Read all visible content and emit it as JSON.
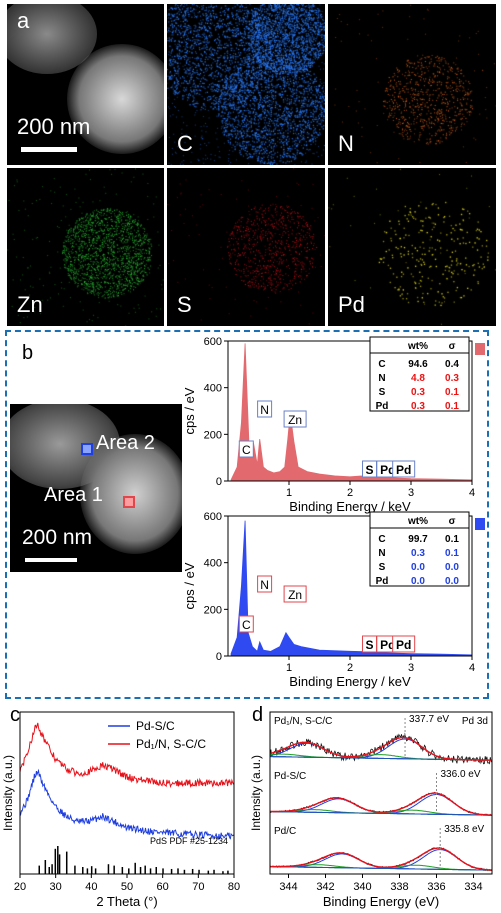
{
  "panel_a": {
    "label": "a",
    "scale_bar": "200 nm",
    "tiles": [
      {
        "label": "",
        "color": "#cfcfcf"
      },
      {
        "label": "C",
        "color": "#2a7cff"
      },
      {
        "label": "N",
        "color": "#e0661e"
      },
      {
        "label": "Zn",
        "color": "#29c233"
      },
      {
        "label": "S",
        "color": "#d0121c"
      },
      {
        "label": "Pd",
        "color": "#e6e01a"
      }
    ]
  },
  "panel_b": {
    "label": "b",
    "scale_bar": "200 nm",
    "area1_label": "Area 1",
    "area2_label": "Area 2",
    "area1_color": "#e0474c",
    "area2_color": "#1f3fe0",
    "table_header": [
      "",
      "wt%",
      "σ"
    ],
    "table1": [
      [
        "C",
        "94.6",
        "0.4"
      ],
      [
        "N",
        "4.8",
        "0.3"
      ],
      [
        "S",
        "0.3",
        "0.1"
      ],
      [
        "Pd",
        "0.3",
        "0.1"
      ]
    ],
    "table2": [
      [
        "C",
        "99.7",
        "0.1"
      ],
      [
        "N",
        "0.3",
        "0.1"
      ],
      [
        "S",
        "0.0",
        "0.0"
      ],
      [
        "Pd",
        "0.0",
        "0.0"
      ]
    ]
  },
  "panel_c": {
    "label": "c"
  },
  "panel_d": {
    "label": "d"
  },
  "chart_data": [
    {
      "type": "area",
      "id": "eds-area1",
      "xlabel": "Binding Energy / keV",
      "ylabel": "cps / eV",
      "xlim": [
        0,
        4
      ],
      "ylim": [
        0,
        600
      ],
      "xticks": [
        1,
        2,
        3,
        4
      ],
      "yticks": [
        0,
        200,
        400,
        600
      ],
      "legend": "Area 1",
      "legend_position": "top-right",
      "peak_labels": [
        "C",
        "N",
        "Zn",
        "S",
        "Pd",
        "Pd"
      ],
      "series": [
        {
          "name": "Area 1",
          "x": [
            0.05,
            0.15,
            0.22,
            0.28,
            0.35,
            0.42,
            0.48,
            0.52,
            0.58,
            0.65,
            0.75,
            0.85,
            0.93,
            0.98,
            1.02,
            1.08,
            1.15,
            1.3,
            1.5,
            1.75,
            2.0,
            2.2,
            2.3,
            2.4,
            2.6,
            2.8,
            3.0,
            3.5,
            4.0
          ],
          "y": [
            5,
            60,
            250,
            590,
            120,
            160,
            70,
            180,
            60,
            45,
            35,
            40,
            60,
            180,
            290,
            170,
            60,
            40,
            30,
            22,
            18,
            22,
            60,
            20,
            15,
            12,
            10,
            8,
            5
          ]
        }
      ]
    },
    {
      "type": "area",
      "id": "eds-area2",
      "xlabel": "Binding Energy / keV",
      "ylabel": "cps / eV",
      "xlim": [
        0,
        4
      ],
      "ylim": [
        0,
        600
      ],
      "xticks": [
        1,
        2,
        3,
        4
      ],
      "yticks": [
        0,
        200,
        400,
        600
      ],
      "legend": "Area 2",
      "legend_position": "top-right",
      "peak_labels": [
        "C",
        "N",
        "Zn",
        "S",
        "Pd",
        "Pd"
      ],
      "series": [
        {
          "name": "Area 2",
          "x": [
            0.05,
            0.15,
            0.22,
            0.28,
            0.33,
            0.4,
            0.48,
            0.52,
            0.58,
            0.7,
            0.85,
            0.95,
            1.0,
            1.08,
            1.2,
            1.5,
            2.0,
            2.3,
            2.5,
            3.0,
            3.5,
            4.0
          ],
          "y": [
            10,
            80,
            300,
            580,
            100,
            40,
            20,
            60,
            25,
            20,
            40,
            100,
            80,
            50,
            40,
            25,
            20,
            18,
            14,
            10,
            8,
            5
          ]
        }
      ]
    },
    {
      "type": "line",
      "id": "xrd",
      "xlabel": "2 Theta (°)",
      "ylabel": "Intensity (a.u.)",
      "xlim": [
        20,
        80
      ],
      "xticks": [
        20,
        30,
        40,
        50,
        60,
        70,
        80
      ],
      "legend_position": "top-right",
      "reference_label": "PdS PDF #25-1234",
      "series": [
        {
          "name": "Pd-S/C",
          "color": "#1f3fe0",
          "x": [
            20,
            22,
            24,
            25,
            26,
            28,
            30,
            33,
            36,
            40,
            43,
            46,
            50,
            55,
            60,
            70,
            80
          ],
          "y": [
            0.35,
            0.45,
            0.65,
            0.7,
            0.62,
            0.5,
            0.4,
            0.32,
            0.27,
            0.28,
            0.32,
            0.28,
            0.22,
            0.2,
            0.18,
            0.16,
            0.15
          ]
        },
        {
          "name": "Pd₁/N, S-C/C",
          "color": "#e8111a",
          "x": [
            20,
            22,
            24,
            25,
            26,
            28,
            30,
            33,
            36,
            40,
            43,
            46,
            50,
            55,
            60,
            70,
            80
          ],
          "y": [
            0.7,
            0.85,
            1.05,
            1.1,
            1.02,
            0.9,
            0.8,
            0.72,
            0.68,
            0.7,
            0.75,
            0.72,
            0.65,
            0.62,
            0.6,
            0.6,
            0.6
          ]
        }
      ],
      "reference_x": [
        25.4,
        27.1,
        28.2,
        29.0,
        29.9,
        30.6,
        31.1,
        33.1,
        35.4,
        37.6,
        38.9,
        40.1,
        41.2,
        44.8,
        46.4,
        48.7,
        50.5,
        52.3,
        53.8,
        55.1,
        56.6,
        58.2,
        60.1,
        62.5,
        64.3,
        66.1,
        68.4,
        70.2,
        72.8,
        74.4,
        76.9,
        78.3
      ],
      "reference_h": [
        0.3,
        0.5,
        0.25,
        0.35,
        0.9,
        1.0,
        0.7,
        0.8,
        0.3,
        0.25,
        0.2,
        0.28,
        0.2,
        0.35,
        0.3,
        0.25,
        0.2,
        0.4,
        0.25,
        0.3,
        0.2,
        0.25,
        0.2,
        0.18,
        0.2,
        0.15,
        0.18,
        0.15,
        0.12,
        0.15,
        0.1,
        0.12
      ]
    },
    {
      "type": "line",
      "id": "xps-pd3d",
      "xlabel": "Binding Energy (eV)",
      "ylabel": "Intensity (a.u.)",
      "xlim": [
        345,
        333
      ],
      "xticks": [
        344,
        342,
        340,
        338,
        336,
        334
      ],
      "title": "Pd 3d",
      "panels": [
        {
          "name": "Pd₁/N, S-C/C",
          "annotation": "337.7 eV",
          "peak": 337.7,
          "peak2": 343.0
        },
        {
          "name": "Pd-S/C",
          "annotation": "336.0 eV",
          "peak": 336.0,
          "peak2": 341.3
        },
        {
          "name": "Pd/C",
          "annotation": "335.8 eV",
          "peak": 335.8,
          "peak2": 341.1
        }
      ]
    }
  ]
}
